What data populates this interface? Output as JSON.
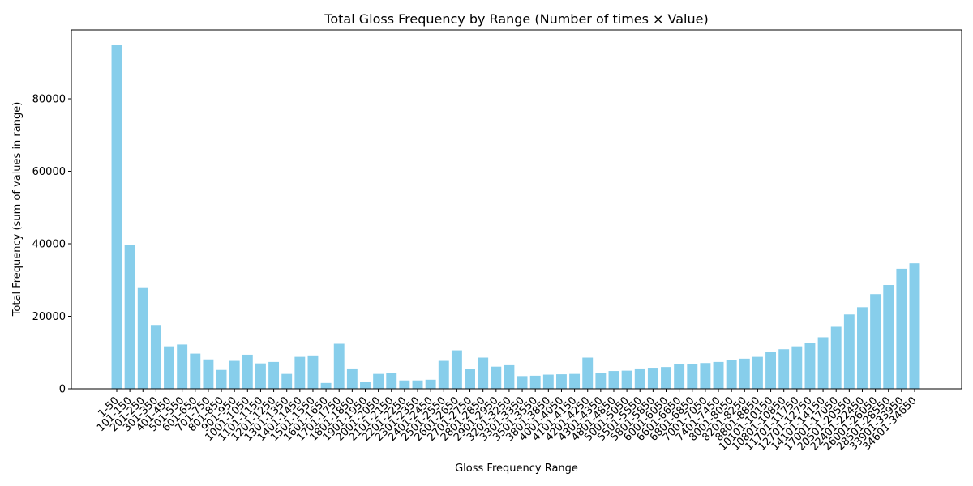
{
  "chart_data": {
    "type": "bar",
    "title": "Total Gloss Frequency by Range (Number of times × Value)",
    "xlabel": "Gloss Frequency Range",
    "ylabel": "Total Frequency (sum of values in range)",
    "ylim": [
      0,
      99000
    ],
    "yticks": [
      0,
      20000,
      40000,
      60000,
      80000
    ],
    "grid": false,
    "color": "#87ceeb",
    "categories": [
      "1-50",
      "101-150",
      "201-250",
      "301-350",
      "401-450",
      "501-550",
      "601-650",
      "701-750",
      "801-850",
      "901-950",
      "1001-1050",
      "1101-1150",
      "1201-1250",
      "1301-1350",
      "1401-1450",
      "1501-1550",
      "1601-1650",
      "1701-1750",
      "1801-1850",
      "1901-1950",
      "2001-2050",
      "2101-2150",
      "2201-2250",
      "2301-2350",
      "2401-2450",
      "2501-2550",
      "2601-2650",
      "2701-2750",
      "2801-2850",
      "2901-2950",
      "3201-3250",
      "3301-3350",
      "3501-3550",
      "3801-3850",
      "4001-4050",
      "4101-4150",
      "4201-4250",
      "4301-4350",
      "4801-4850",
      "5001-5050",
      "5501-5550",
      "5801-5850",
      "6001-6050",
      "6601-6650",
      "6801-6850",
      "7001-7050",
      "7401-7450",
      "8001-8050",
      "8201-8250",
      "8801-8850",
      "10101-10150",
      "10801-10850",
      "11701-11750",
      "12701-12750",
      "14101-14150",
      "17001-17050",
      "20501-20550",
      "22401-22450",
      "26001-26050",
      "28501-28550",
      "33901-33950",
      "34601-34650"
    ],
    "values": [
      94800,
      39600,
      28000,
      17600,
      11700,
      12200,
      9700,
      8100,
      5200,
      7700,
      9400,
      7000,
      7400,
      4100,
      8800,
      9200,
      1600,
      12400,
      5600,
      1900,
      4100,
      4300,
      2300,
      2300,
      2500,
      7700,
      10600,
      5500,
      8600,
      6100,
      6500,
      3500,
      3600,
      3900,
      4000,
      4100,
      8600,
      4300,
      4900,
      5000,
      5600,
      5800,
      6000,
      6800,
      6800,
      7100,
      7400,
      8000,
      8300,
      8800,
      10200,
      10900,
      11700,
      12700,
      14200,
      17100,
      20500,
      22500,
      26100,
      28600,
      33100,
      34600
    ]
  }
}
